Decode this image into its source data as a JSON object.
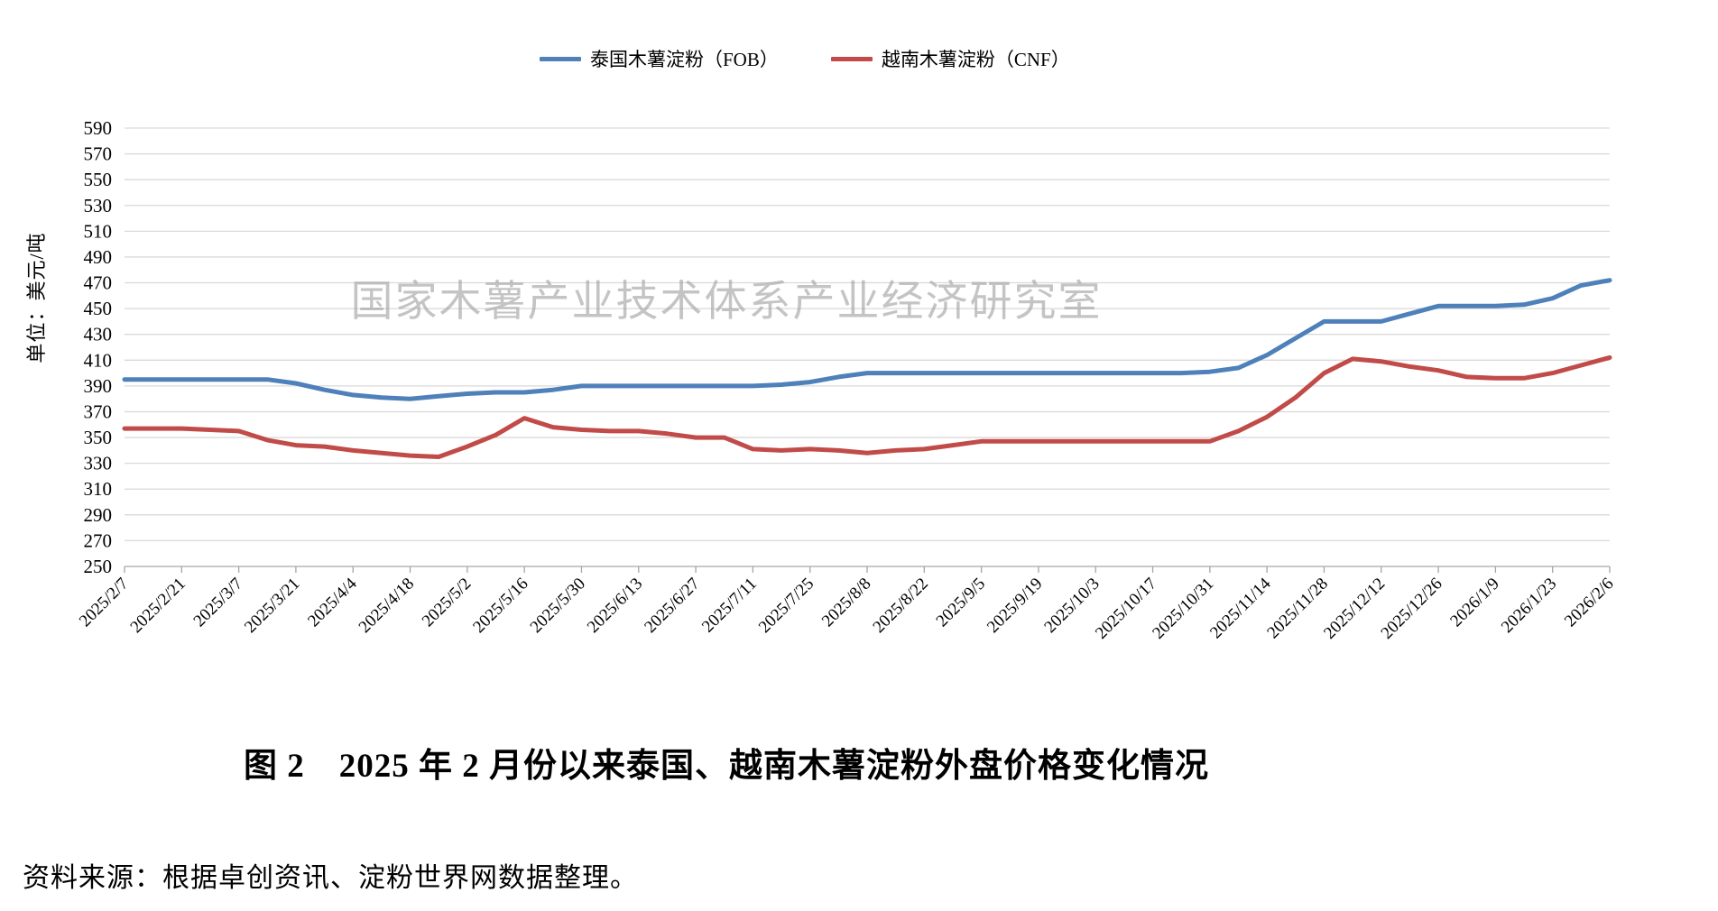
{
  "page": {
    "title": "图 2　2025 年 2 月份以来泰国、越南木薯淀粉外盘价格变化情况",
    "source_note": "资料来源：根据卓创资讯、淀粉世界网数据整理。",
    "watermark": "国家木薯产业技术体系产业经济研究室"
  },
  "chart_data": {
    "type": "line",
    "title": "",
    "y_axis_title": "单位：美元/吨",
    "xlabel": "",
    "ylabel": "单位：美元/吨",
    "ylim": [
      250,
      590
    ],
    "y_tick_step": 20,
    "x_label_every": 2,
    "grid": true,
    "legend_position": "top",
    "colors": {
      "thailand_fob": "#4e80ba",
      "vietnam_cnf": "#c14b48",
      "gridline": "#d9d9d9",
      "axis": "#a6a6a6",
      "watermark": "#9e9e9e"
    },
    "categories": [
      "2025/2/7",
      "2025/2/14",
      "2025/2/21",
      "2025/2/28",
      "2025/3/7",
      "2025/3/14",
      "2025/3/21",
      "2025/3/28",
      "2025/4/4",
      "2025/4/11",
      "2025/4/18",
      "2025/4/25",
      "2025/5/2",
      "2025/5/9",
      "2025/5/16",
      "2025/5/23",
      "2025/5/30",
      "2025/6/6",
      "2025/6/13",
      "2025/6/20",
      "2025/6/27",
      "2025/7/4",
      "2025/7/11",
      "2025/7/18",
      "2025/7/25",
      "2025/8/1",
      "2025/8/8",
      "2025/8/15",
      "2025/8/22",
      "2025/8/29",
      "2025/9/5",
      "2025/9/12",
      "2025/9/19",
      "2025/9/26",
      "2025/10/3",
      "2025/10/10",
      "2025/10/17",
      "2025/10/24",
      "2025/10/31",
      "2025/11/7",
      "2025/11/14",
      "2025/11/21",
      "2025/11/28",
      "2025/12/5",
      "2025/12/12",
      "2025/12/19",
      "2025/12/26",
      "2026/1/2",
      "2026/1/9",
      "2026/1/16",
      "2026/1/23",
      "2026/1/30",
      "2026/2/6"
    ],
    "series": [
      {
        "name": "泰国木薯淀粉（FOB）",
        "color": "#4e80ba",
        "values": [
          395,
          395,
          395,
          395,
          395,
          395,
          392,
          387,
          383,
          381,
          380,
          382,
          384,
          385,
          385,
          387,
          390,
          390,
          390,
          390,
          390,
          390,
          390,
          391,
          393,
          397,
          400,
          400,
          400,
          400,
          400,
          400,
          400,
          400,
          400,
          400,
          400,
          400,
          401,
          404,
          414,
          427,
          440,
          440,
          440,
          446,
          452,
          452,
          452,
          453,
          458,
          468,
          472
        ]
      },
      {
        "name": "越南木薯淀粉（CNF）",
        "color": "#c14b48",
        "values": [
          357,
          357,
          357,
          356,
          355,
          348,
          344,
          343,
          340,
          338,
          336,
          335,
          343,
          352,
          365,
          358,
          356,
          355,
          355,
          353,
          350,
          350,
          341,
          340,
          341,
          340,
          338,
          340,
          341,
          344,
          347,
          347,
          347,
          347,
          347,
          347,
          347,
          347,
          347,
          355,
          366,
          381,
          400,
          411,
          409,
          405,
          402,
          397,
          396,
          396,
          400,
          406,
          412
        ]
      }
    ]
  }
}
